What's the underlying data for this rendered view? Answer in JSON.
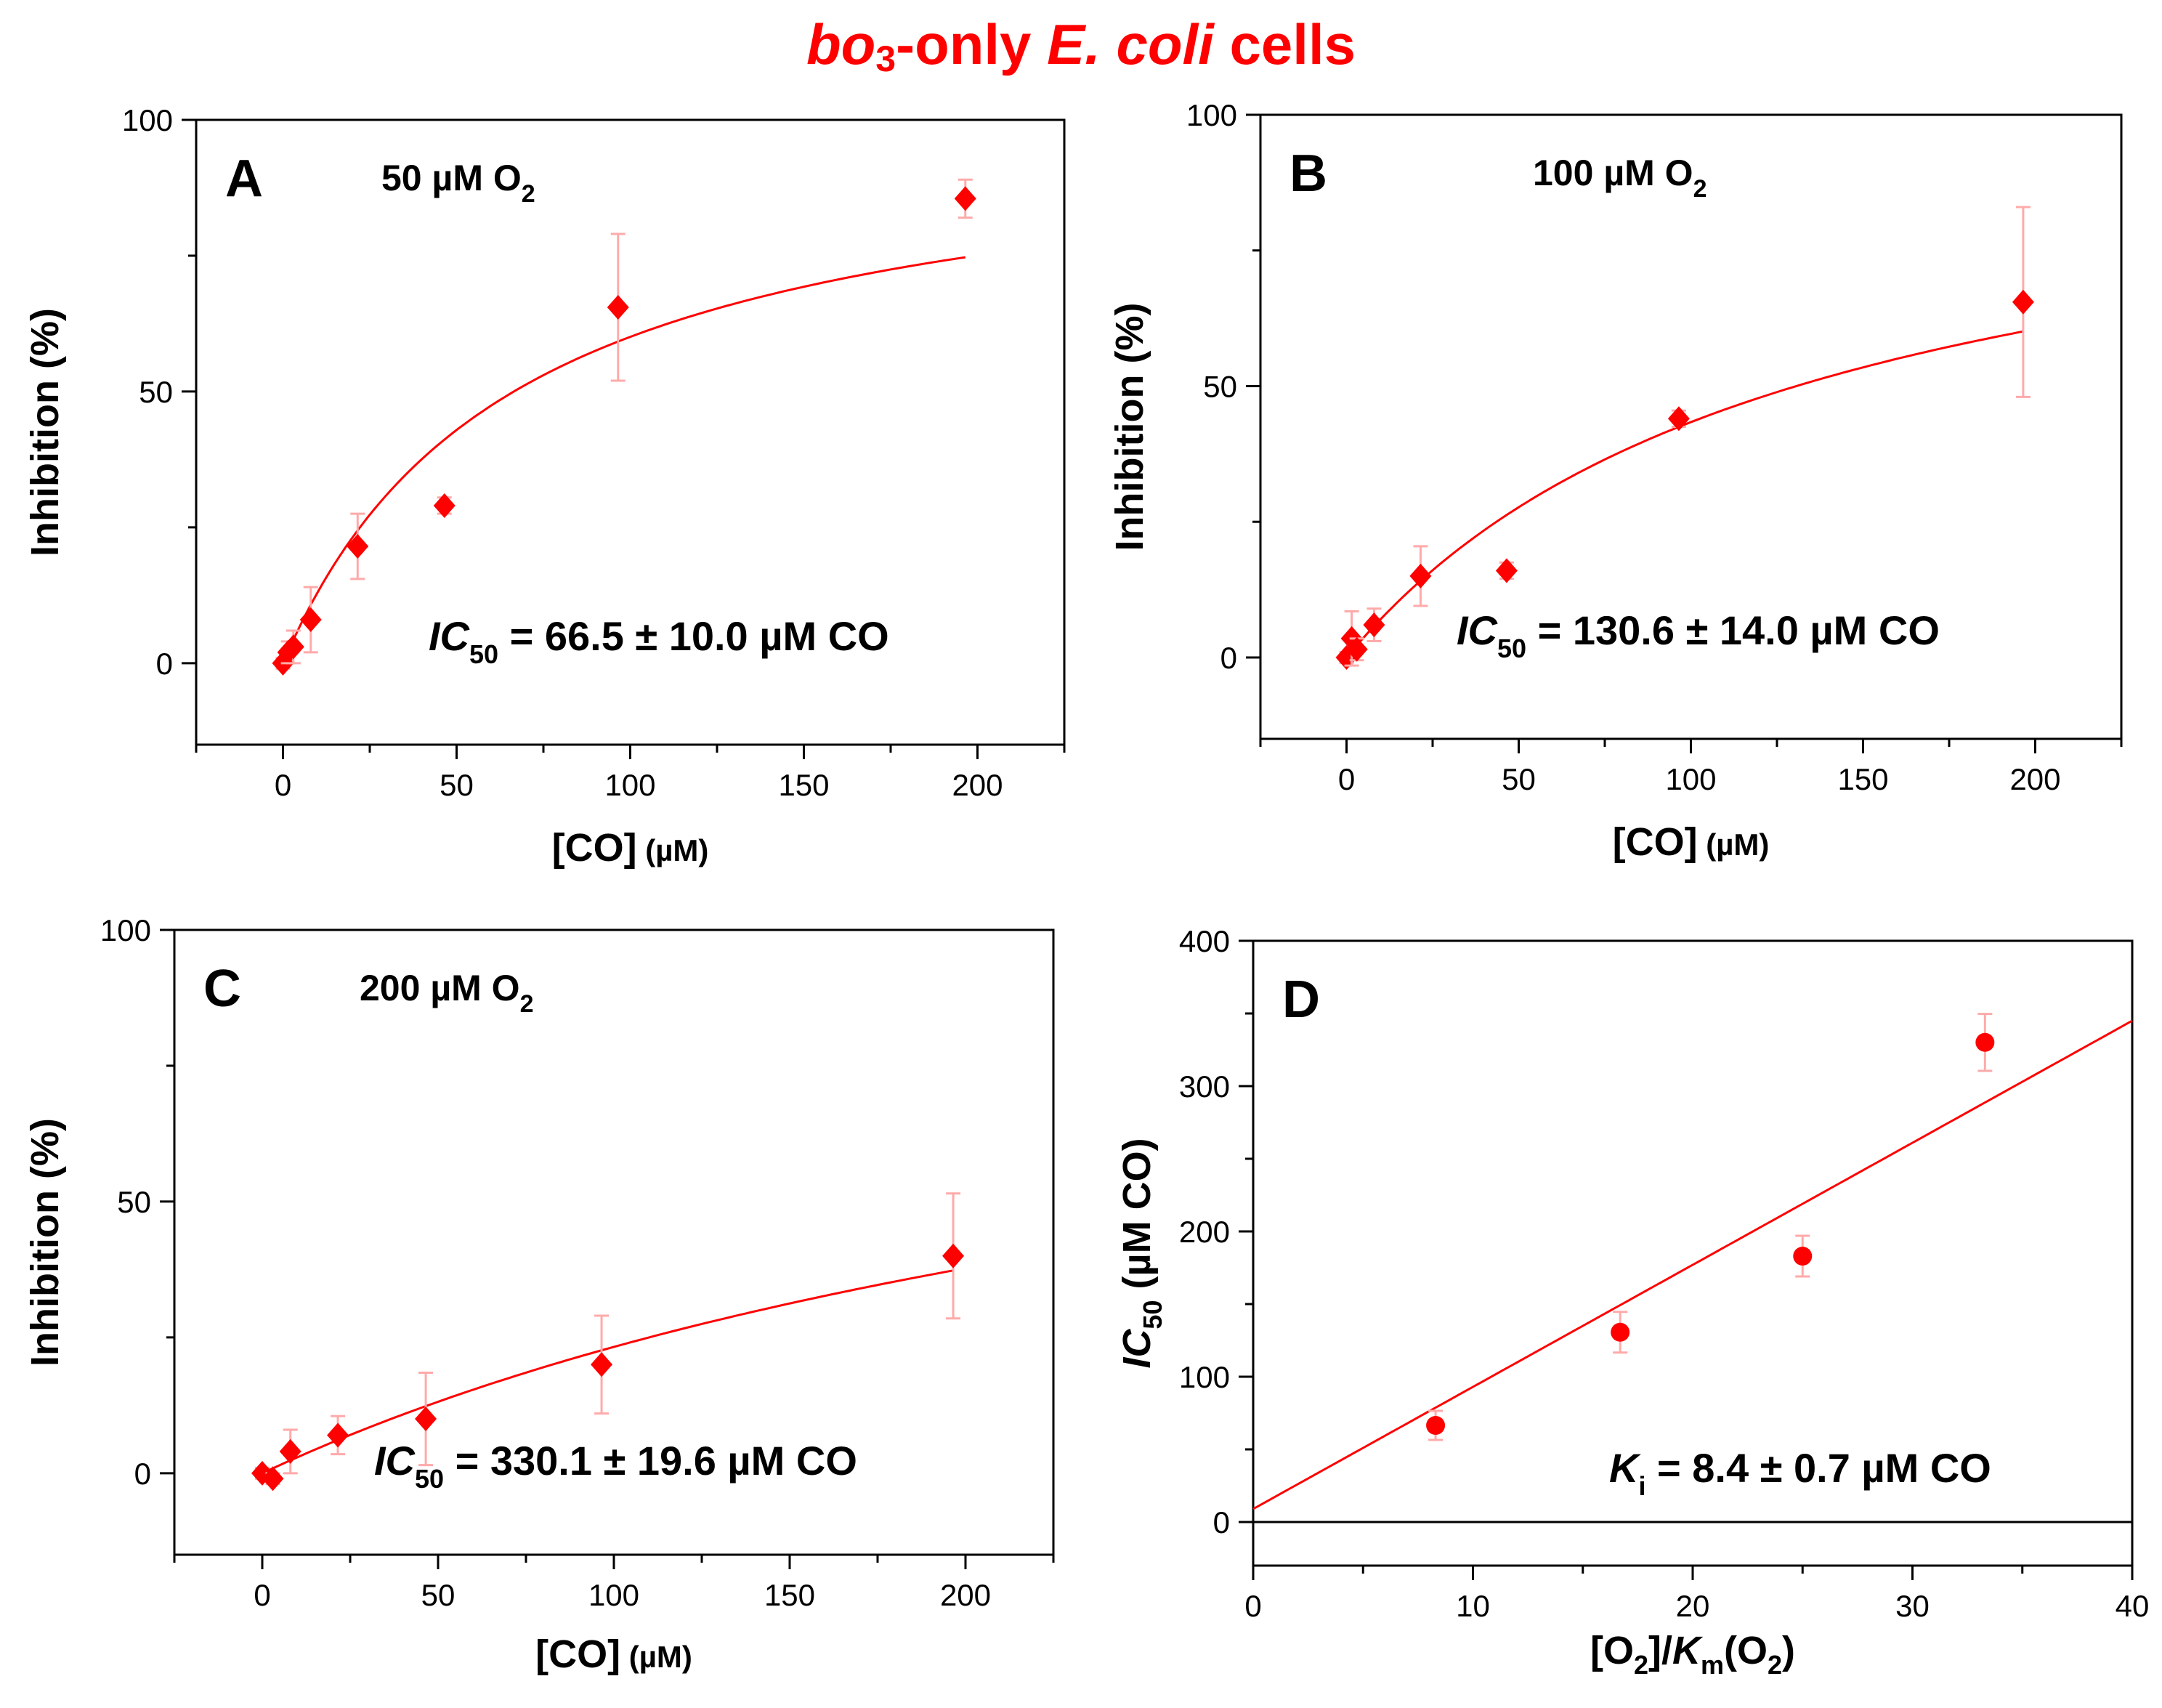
{
  "figure_title": {
    "part1": "bo",
    "sub": "3",
    "part2": "-only ",
    "part3": "E. coli",
    "part4": " cells"
  },
  "colors": {
    "data": "#ff0000",
    "fit": "#ff0000",
    "error_bar": "#ffaaaa",
    "axis": "#000000",
    "title": "#ff0000"
  },
  "chart_data": [
    {
      "id": "A",
      "type": "scatter",
      "panel_label": "A",
      "condition": {
        "prefix": "50 µM O",
        "sub": "2"
      },
      "annotation": {
        "italic": "IC",
        "sub": "50",
        "rest": " = 66.5 ± 10.0 µM CO"
      },
      "ylabel": "Inhibition (%)",
      "xlabel": {
        "main": "[CO]",
        "unit": " (µM)"
      },
      "xlim": [
        -25,
        225
      ],
      "ylim": [
        -15,
        100
      ],
      "xticks": [
        0,
        50,
        100,
        150,
        200
      ],
      "xtick_labels": [
        "0",
        "50",
        "100",
        "150",
        "200"
      ],
      "yticks": [
        0,
        50,
        100
      ],
      "ytick_labels": [
        "0",
        "50",
        "100"
      ],
      "points": [
        {
          "x": 0,
          "y": 0,
          "err": 1
        },
        {
          "x": 1.5,
          "y": 2,
          "err": 2
        },
        {
          "x": 3,
          "y": 3,
          "err": 3
        },
        {
          "x": 8,
          "y": 8,
          "err": 6
        },
        {
          "x": 21.5,
          "y": 21.5,
          "err": 6
        },
        {
          "x": 46.5,
          "y": 29,
          "err": 1.5
        },
        {
          "x": 96.5,
          "y": 65.5,
          "err": 13.5
        },
        {
          "x": 196.5,
          "y": 85.5,
          "err": 3.5
        }
      ],
      "fit": {
        "model": "hyperbolic",
        "ymax": 100,
        "ic50": 66.5,
        "x_range": [
          0,
          196.5
        ]
      }
    },
    {
      "id": "B",
      "type": "scatter",
      "panel_label": "B",
      "condition": {
        "prefix": "100 µM O",
        "sub": "2"
      },
      "annotation": {
        "italic": "IC",
        "sub": "50",
        "rest": " = 130.6 ± 14.0 µM CO"
      },
      "ylabel": "Inhibition (%)",
      "xlabel": {
        "main": "[CO]",
        "unit": " (µM)"
      },
      "xlim": [
        -25,
        225
      ],
      "ylim": [
        -15,
        100
      ],
      "xticks": [
        0,
        50,
        100,
        150,
        200
      ],
      "xtick_labels": [
        "0",
        "50",
        "100",
        "150",
        "200"
      ],
      "yticks": [
        0,
        50,
        100
      ],
      "ytick_labels": [
        "0",
        "50",
        "100"
      ],
      "points": [
        {
          "x": 0,
          "y": 0,
          "err": 1
        },
        {
          "x": 1.5,
          "y": 3.5,
          "err": 5
        },
        {
          "x": 3,
          "y": 1.5,
          "err": 2
        },
        {
          "x": 8,
          "y": 6,
          "err": 3
        },
        {
          "x": 21.5,
          "y": 15,
          "err": 5.5
        },
        {
          "x": 46.5,
          "y": 16,
          "err": 1.5
        },
        {
          "x": 96.5,
          "y": 44,
          "err": 1.5
        },
        {
          "x": 196.5,
          "y": 65.5,
          "err": 17.5
        }
      ],
      "fit": {
        "model": "hyperbolic",
        "ymax": 100,
        "ic50": 130.6,
        "x_range": [
          0,
          196.5
        ]
      }
    },
    {
      "id": "C",
      "type": "scatter",
      "panel_label": "C",
      "condition": {
        "prefix": "200 µM O",
        "sub": "2"
      },
      "annotation": {
        "italic": "IC",
        "sub": "50",
        "rest": " = 330.1 ± 19.6 µM CO"
      },
      "ylabel": "Inhibition (%)",
      "xlabel": {
        "main": "[CO]",
        "unit": " (µM)"
      },
      "xlim": [
        -25,
        225
      ],
      "ylim": [
        -15,
        100
      ],
      "xticks": [
        0,
        50,
        100,
        150,
        200
      ],
      "xtick_labels": [
        "0",
        "50",
        "100",
        "150",
        "200"
      ],
      "yticks": [
        0,
        50,
        100
      ],
      "ytick_labels": [
        "0",
        "50",
        "100"
      ],
      "points": [
        {
          "x": 0,
          "y": 0,
          "err": 1
        },
        {
          "x": 3,
          "y": -1,
          "err": 1
        },
        {
          "x": 8,
          "y": 4,
          "err": 4
        },
        {
          "x": 21.5,
          "y": 7,
          "err": 3.5
        },
        {
          "x": 46.5,
          "y": 10,
          "err": 8.5
        },
        {
          "x": 96.5,
          "y": 20,
          "err": 9
        },
        {
          "x": 196.5,
          "y": 40,
          "err": 11.5
        }
      ],
      "fit": {
        "model": "hyperbolic",
        "ymax": 100,
        "ic50": 330.1,
        "x_range": [
          0,
          196.5
        ]
      }
    },
    {
      "id": "D",
      "type": "scatter",
      "panel_label": "D",
      "annotation": {
        "italic": "K",
        "sub": "i",
        "rest": " = 8.4 ± 0.7 µM CO"
      },
      "ylabel": {
        "italic": "IC",
        "sub": "50",
        "rest": " (µM CO)"
      },
      "xlabel": {
        "a": "[O",
        "a_sub": "2",
        "b": "]/",
        "b_italic": "K",
        "c_sub": "m",
        "d": "(O",
        "d_sub": "2",
        "e": ")"
      },
      "xlim": [
        0,
        40
      ],
      "ylim": [
        -30,
        400
      ],
      "xticks": [
        0,
        10,
        20,
        30,
        40
      ],
      "xtick_labels": [
        "0",
        "10",
        "20",
        "30",
        "40"
      ],
      "yticks": [
        0,
        100,
        200,
        300,
        400
      ],
      "ytick_labels": [
        "0",
        "100",
        "200",
        "300",
        "400"
      ],
      "marker": "circle",
      "points": [
        {
          "x": 8.3,
          "y": 66.5,
          "err": 10
        },
        {
          "x": 16.7,
          "y": 130.6,
          "err": 14
        },
        {
          "x": 25,
          "y": 183,
          "err": 14
        },
        {
          "x": 33.3,
          "y": 330.1,
          "err": 19.6
        }
      ],
      "fit": {
        "model": "linear",
        "slope": 8.4,
        "intercept": 9,
        "x_range": [
          0,
          40
        ]
      },
      "reference_line_y": 0
    }
  ]
}
